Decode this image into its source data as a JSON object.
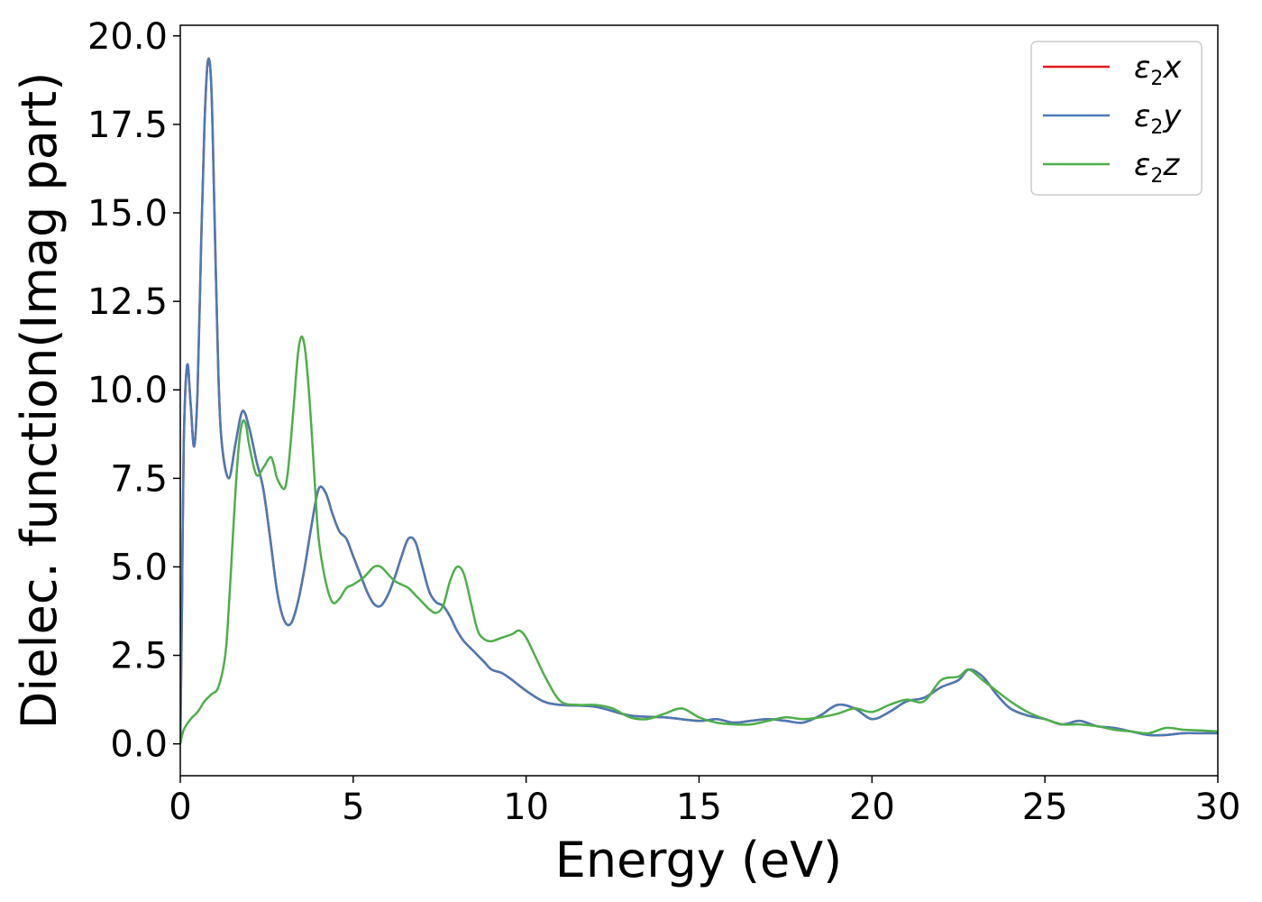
{
  "chart_data": {
    "type": "line",
    "title": "",
    "xlabel": "Energy (eV)",
    "ylabel": "Dielec. function(Imag part)",
    "xlim": [
      0,
      30
    ],
    "ylim": [
      -0.9,
      20.3
    ],
    "xticks": [
      0,
      5,
      10,
      15,
      20,
      25,
      30
    ],
    "xtick_labels": [
      "0",
      "5",
      "10",
      "15",
      "20",
      "25",
      "30"
    ],
    "yticks": [
      0.0,
      2.5,
      5.0,
      7.5,
      10.0,
      12.5,
      15.0,
      17.5,
      20.0
    ],
    "ytick_labels": [
      "0.0",
      "2.5",
      "5.0",
      "7.5",
      "10.0",
      "12.5",
      "15.0",
      "17.5",
      "20.0"
    ],
    "grid": false,
    "legend_position": "top-right",
    "series": [
      {
        "name": "ε₂x",
        "legend_symbol": "ε",
        "legend_sub": "2",
        "legend_var": "x",
        "color": "#e41a1c",
        "x": [
          0,
          0.05,
          0.1,
          0.2,
          0.3,
          0.4,
          0.5,
          0.6,
          0.7,
          0.8,
          0.9,
          1.0,
          1.1,
          1.2,
          1.4,
          1.6,
          1.8,
          2.0,
          2.2,
          2.4,
          2.6,
          2.8,
          3.0,
          3.2,
          3.4,
          3.6,
          3.8,
          4.0,
          4.2,
          4.4,
          4.6,
          4.8,
          5.0,
          5.2,
          5.4,
          5.6,
          5.8,
          6.0,
          6.2,
          6.4,
          6.6,
          6.8,
          7.0,
          7.2,
          7.4,
          7.6,
          7.8,
          8.0,
          8.2,
          8.5,
          8.8,
          9.0,
          9.3,
          9.6,
          10.0,
          10.5,
          11.0,
          12.0,
          13.0,
          14.0,
          15.0,
          15.5,
          16.0,
          16.5,
          17.0,
          17.5,
          18.0,
          18.5,
          19.0,
          19.5,
          20.0,
          20.5,
          21.0,
          21.5,
          22.0,
          22.5,
          22.8,
          23.2,
          23.6,
          24.0,
          24.5,
          25.0,
          25.5,
          26.0,
          26.5,
          27.0,
          27.5,
          28.0,
          28.5,
          29.0,
          29.5,
          30.0
        ],
        "y": [
          0.0,
          4.0,
          8.5,
          10.7,
          9.6,
          8.4,
          10.0,
          14.0,
          17.5,
          19.3,
          18.5,
          14.5,
          10.5,
          8.5,
          7.5,
          8.5,
          9.4,
          8.9,
          8.0,
          7.2,
          5.8,
          4.3,
          3.5,
          3.4,
          4.0,
          5.0,
          6.2,
          7.2,
          7.1,
          6.5,
          6.0,
          5.8,
          5.3,
          4.8,
          4.3,
          3.95,
          3.9,
          4.2,
          4.7,
          5.3,
          5.8,
          5.7,
          5.0,
          4.3,
          4.0,
          3.9,
          3.6,
          3.2,
          2.9,
          2.6,
          2.3,
          2.1,
          2.0,
          1.8,
          1.5,
          1.2,
          1.1,
          1.05,
          0.8,
          0.75,
          0.65,
          0.7,
          0.6,
          0.65,
          0.7,
          0.65,
          0.6,
          0.8,
          1.1,
          1.0,
          0.7,
          0.9,
          1.2,
          1.3,
          1.6,
          1.8,
          2.1,
          1.9,
          1.4,
          1.0,
          0.8,
          0.7,
          0.55,
          0.65,
          0.5,
          0.45,
          0.35,
          0.25,
          0.25,
          0.3,
          0.3,
          0.3
        ]
      },
      {
        "name": "ε₂y",
        "legend_symbol": "ε",
        "legend_sub": "2",
        "legend_var": "y",
        "color": "#4a7ab5",
        "x": [
          0,
          0.05,
          0.1,
          0.2,
          0.3,
          0.4,
          0.5,
          0.6,
          0.7,
          0.8,
          0.9,
          1.0,
          1.1,
          1.2,
          1.4,
          1.6,
          1.8,
          2.0,
          2.2,
          2.4,
          2.6,
          2.8,
          3.0,
          3.2,
          3.4,
          3.6,
          3.8,
          4.0,
          4.2,
          4.4,
          4.6,
          4.8,
          5.0,
          5.2,
          5.4,
          5.6,
          5.8,
          6.0,
          6.2,
          6.4,
          6.6,
          6.8,
          7.0,
          7.2,
          7.4,
          7.6,
          7.8,
          8.0,
          8.2,
          8.5,
          8.8,
          9.0,
          9.3,
          9.6,
          10.0,
          10.5,
          11.0,
          12.0,
          13.0,
          14.0,
          15.0,
          15.5,
          16.0,
          16.5,
          17.0,
          17.5,
          18.0,
          18.5,
          19.0,
          19.5,
          20.0,
          20.5,
          21.0,
          21.5,
          22.0,
          22.5,
          22.8,
          23.2,
          23.6,
          24.0,
          24.5,
          25.0,
          25.5,
          26.0,
          26.5,
          27.0,
          27.5,
          28.0,
          28.5,
          29.0,
          29.5,
          30.0
        ],
        "y": [
          0.0,
          4.0,
          8.5,
          10.7,
          9.6,
          8.4,
          10.0,
          14.0,
          17.5,
          19.3,
          18.5,
          14.5,
          10.5,
          8.5,
          7.5,
          8.5,
          9.4,
          8.9,
          8.0,
          7.2,
          5.8,
          4.3,
          3.5,
          3.4,
          4.0,
          5.0,
          6.2,
          7.2,
          7.1,
          6.5,
          6.0,
          5.8,
          5.3,
          4.8,
          4.3,
          3.95,
          3.9,
          4.2,
          4.7,
          5.3,
          5.8,
          5.7,
          5.0,
          4.3,
          4.0,
          3.9,
          3.6,
          3.2,
          2.9,
          2.6,
          2.3,
          2.1,
          2.0,
          1.8,
          1.5,
          1.2,
          1.1,
          1.05,
          0.8,
          0.75,
          0.65,
          0.7,
          0.6,
          0.65,
          0.7,
          0.65,
          0.6,
          0.8,
          1.1,
          1.0,
          0.7,
          0.9,
          1.2,
          1.3,
          1.6,
          1.8,
          2.1,
          1.9,
          1.4,
          1.0,
          0.8,
          0.7,
          0.55,
          0.65,
          0.5,
          0.45,
          0.35,
          0.25,
          0.25,
          0.3,
          0.3,
          0.3
        ]
      },
      {
        "name": "ε₂z",
        "legend_symbol": "ε",
        "legend_sub": "2",
        "legend_var": "z",
        "color": "#4daf4a",
        "x": [
          0,
          0.1,
          0.3,
          0.5,
          0.7,
          0.9,
          1.1,
          1.3,
          1.4,
          1.5,
          1.6,
          1.7,
          1.8,
          1.9,
          2.0,
          2.2,
          2.4,
          2.6,
          2.7,
          2.8,
          3.0,
          3.1,
          3.2,
          3.3,
          3.4,
          3.5,
          3.6,
          3.7,
          3.8,
          3.9,
          4.0,
          4.2,
          4.4,
          4.6,
          4.8,
          5.0,
          5.3,
          5.6,
          5.8,
          6.0,
          6.2,
          6.4,
          6.6,
          6.8,
          7.0,
          7.2,
          7.4,
          7.6,
          7.8,
          8.0,
          8.2,
          8.4,
          8.6,
          8.8,
          9.0,
          9.3,
          9.6,
          9.8,
          10.0,
          10.3,
          10.6,
          11.0,
          11.5,
          12.0,
          12.5,
          13.0,
          13.5,
          14.0,
          14.5,
          15.0,
          15.5,
          16.0,
          16.5,
          17.0,
          17.5,
          18.0,
          18.5,
          19.0,
          19.5,
          20.0,
          20.5,
          21.0,
          21.5,
          22.0,
          22.5,
          22.8,
          23.2,
          23.6,
          24.0,
          24.5,
          25.0,
          25.5,
          26.0,
          26.5,
          27.0,
          27.5,
          28.0,
          28.5,
          29.0,
          29.5,
          30.0
        ],
        "y": [
          0.0,
          0.4,
          0.7,
          0.9,
          1.2,
          1.4,
          1.6,
          2.5,
          3.8,
          5.5,
          7.2,
          8.5,
          9.1,
          9.0,
          8.4,
          7.6,
          7.8,
          8.1,
          7.9,
          7.5,
          7.2,
          7.6,
          8.6,
          9.8,
          11.0,
          11.5,
          11.2,
          10.2,
          8.8,
          7.2,
          5.8,
          4.6,
          4.0,
          4.1,
          4.4,
          4.5,
          4.7,
          5.0,
          5.0,
          4.8,
          4.6,
          4.5,
          4.4,
          4.2,
          4.0,
          3.8,
          3.7,
          3.9,
          4.6,
          5.0,
          4.8,
          4.0,
          3.2,
          2.95,
          2.9,
          3.0,
          3.1,
          3.2,
          3.0,
          2.4,
          1.8,
          1.2,
          1.1,
          1.1,
          1.0,
          0.75,
          0.7,
          0.85,
          1.0,
          0.75,
          0.6,
          0.55,
          0.55,
          0.65,
          0.75,
          0.7,
          0.75,
          0.85,
          1.0,
          0.9,
          1.1,
          1.25,
          1.2,
          1.8,
          1.9,
          2.1,
          1.8,
          1.5,
          1.2,
          0.9,
          0.7,
          0.55,
          0.55,
          0.5,
          0.4,
          0.35,
          0.3,
          0.45,
          0.4,
          0.38,
          0.35
        ]
      }
    ]
  }
}
